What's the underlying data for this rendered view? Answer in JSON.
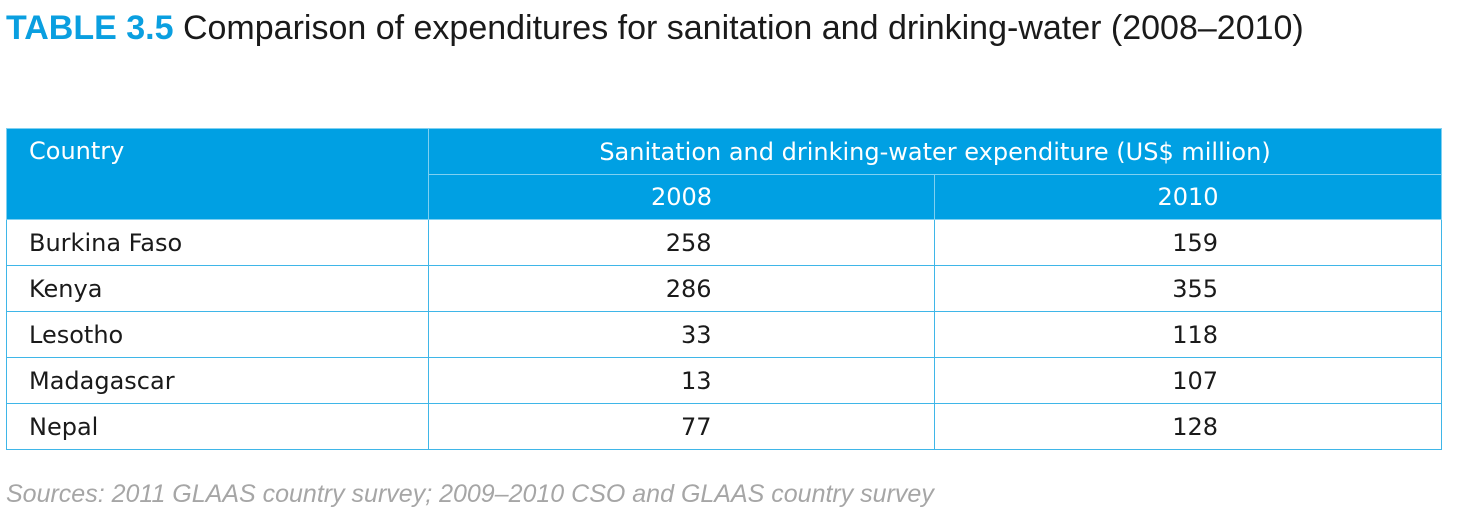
{
  "title": {
    "label": "TABLE 3.5",
    "text": "Comparison of expenditures for sanitation and drinking-water (2008–2010)"
  },
  "table": {
    "country_header": "Country",
    "group_header": "Sanitation and drinking-water expenditure (US$ million)",
    "years": [
      "2008",
      "2010"
    ],
    "rows": [
      {
        "country": "Burkina Faso",
        "y2008": "258",
        "y2010": "159"
      },
      {
        "country": "Kenya",
        "y2008": "286",
        "y2010": "355"
      },
      {
        "country": "Lesotho",
        "y2008": "33",
        "y2010": "118"
      },
      {
        "country": "Madagascar",
        "y2008": "13",
        "y2010": "107"
      },
      {
        "country": "Nepal",
        "y2008": "77",
        "y2010": "128"
      }
    ]
  },
  "sources": "Sources: 2011 GLAAS country survey; 2009–2010 CSO and GLAAS country survey",
  "colors": {
    "accent": "#00a0e3",
    "label": "#0a9fe0",
    "sources_text": "#a6a6a6"
  }
}
